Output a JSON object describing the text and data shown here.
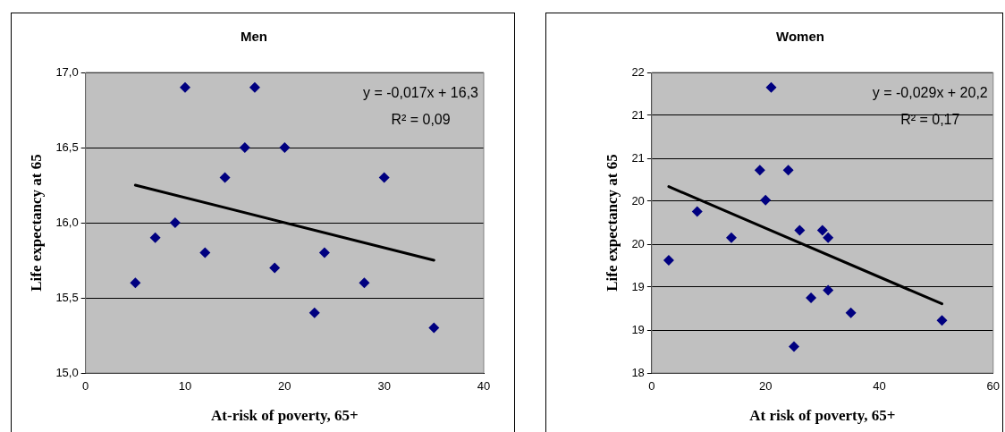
{
  "chart_data": [
    {
      "type": "scatter",
      "title": "Men",
      "xlabel": "At-risk of poverty, 65+",
      "ylabel": "Life expectancy at 65",
      "xlim": [
        0,
        40
      ],
      "xticks": [
        0,
        10,
        20,
        30,
        40
      ],
      "ylim": [
        15,
        17
      ],
      "yticks": [
        {
          "value": 15,
          "label": "15,0"
        },
        {
          "value": 15.5,
          "label": "15,5"
        },
        {
          "value": 16,
          "label": "16,0"
        },
        {
          "value": 16.5,
          "label": "16,5"
        },
        {
          "value": 17,
          "label": "17,0"
        }
      ],
      "grid": "y",
      "legend": false,
      "annotations": [
        "y = -0,017x + 16,3",
        "R² = 0,09"
      ],
      "series": [
        {
          "type": "scatter",
          "color": "#000080",
          "marker": "diamond",
          "x": [
            5,
            7,
            9,
            10,
            12,
            14,
            16,
            17,
            19,
            20,
            23,
            24,
            28,
            30,
            35
          ],
          "values": [
            15.6,
            15.9,
            16.0,
            16.9,
            15.8,
            16.3,
            16.5,
            16.9,
            15.7,
            16.5,
            15.4,
            15.8,
            15.6,
            16.3,
            15.3
          ]
        },
        {
          "type": "line",
          "color": "#000000",
          "marker": "none",
          "x": [
            5,
            35
          ],
          "values": [
            16.25,
            15.75
          ]
        }
      ]
    },
    {
      "type": "scatter",
      "title": "Women",
      "xlabel": "At risk of poverty, 65+",
      "ylabel": "Life expectancy at 65",
      "xlim": [
        0,
        60
      ],
      "xticks": [
        0,
        20,
        40,
        60
      ],
      "ylim": [
        18,
        22
      ],
      "yticks": [
        18,
        {
          "value": 18.571,
          "label": "19"
        },
        {
          "value": 19.143,
          "label": "19"
        },
        {
          "value": 19.714,
          "label": "20"
        },
        {
          "value": 20.286,
          "label": "20"
        },
        {
          "value": 20.857,
          "label": "21"
        },
        {
          "value": 21.429,
          "label": "21"
        },
        22
      ],
      "grid": "y",
      "legend": false,
      "annotations": [
        "y = -0,029x + 20,2",
        "R² = 0,17"
      ],
      "series": [
        {
          "type": "scatter",
          "color": "#000080",
          "marker": "diamond",
          "x": [
            3,
            8,
            14,
            19,
            20,
            21,
            24,
            25,
            26,
            28,
            30,
            31,
            31,
            35,
            51
          ],
          "values": [
            19.5,
            20.15,
            19.8,
            20.7,
            20.3,
            21.8,
            20.7,
            18.35,
            19.9,
            19.0,
            19.9,
            19.8,
            19.1,
            18.8,
            18.7
          ]
        },
        {
          "type": "line",
          "color": "#000000",
          "marker": "none",
          "x": [
            3,
            51
          ],
          "values": [
            20.48,
            18.92
          ]
        }
      ]
    }
  ]
}
